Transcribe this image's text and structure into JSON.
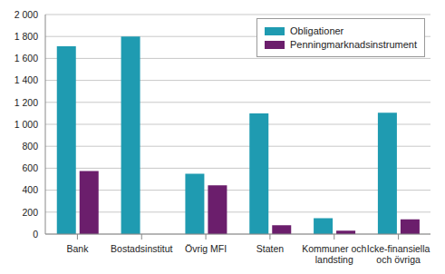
{
  "chart_data": {
    "type": "bar",
    "categories": [
      "Bank",
      "Bostadsinstitut",
      "Övrig MFI",
      "Staten",
      "Kommuner och landsting",
      "Icke-finansiella och övriga"
    ],
    "series": [
      {
        "name": "Obligationer",
        "color": "#1f9bb1",
        "values": [
          1710,
          1800,
          550,
          1100,
          145,
          1105
        ]
      },
      {
        "name": "Penningmarknadsinstrument",
        "color": "#6b1e6c",
        "values": [
          575,
          0,
          445,
          80,
          30,
          135
        ]
      }
    ],
    "ylim": [
      0,
      2000
    ],
    "yticks": [
      0,
      200,
      400,
      600,
      800,
      {
        "value": 1000,
        "label": "1 000"
      },
      {
        "value": 1200,
        "label": "1 200"
      },
      {
        "value": 1400,
        "label": "1 400"
      },
      {
        "value": 1600,
        "label": "1 600"
      },
      {
        "value": 1800,
        "label": "1 800"
      },
      {
        "value": 2000,
        "label": "2 000"
      }
    ],
    "grid": true,
    "legend": "upper right"
  }
}
